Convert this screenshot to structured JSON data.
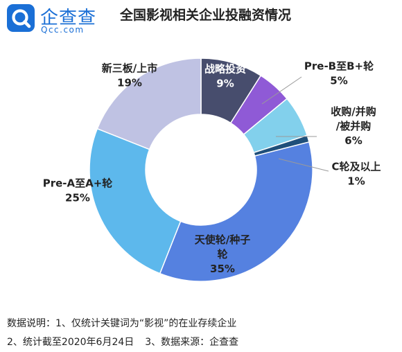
{
  "logo": {
    "name": "企查查",
    "domain": "Qcc.com",
    "accent": "#1a6fd6"
  },
  "title": "全国影视相关企业投融资情况",
  "chart_data": {
    "type": "pie",
    "donut": true,
    "start_angle_deg": 0,
    "slices": [
      {
        "label_lines": [
          "战略投资"
        ],
        "pct_label": "9%",
        "value": 9,
        "color": "#474d6d",
        "text_color": "#ffffff"
      },
      {
        "label_lines": [
          "Pre-B至B+轮"
        ],
        "pct_label": "5%",
        "value": 5,
        "color": "#8f5ad6",
        "text_color": "#222222"
      },
      {
        "label_lines": [
          "收购/并购",
          "/被并购"
        ],
        "pct_label": "6%",
        "value": 6,
        "color": "#82d0ec",
        "text_color": "#222222"
      },
      {
        "label_lines": [
          "C轮及以上"
        ],
        "pct_label": "1%",
        "value": 1,
        "color": "#1f4f7a",
        "text_color": "#222222"
      },
      {
        "label_lines": [
          "天使轮/种子",
          "轮"
        ],
        "pct_label": "35%",
        "value": 35,
        "color": "#5581e0",
        "text_color": "#222222"
      },
      {
        "label_lines": [
          "Pre-A至A+轮"
        ],
        "pct_label": "25%",
        "value": 25,
        "color": "#5db8ec",
        "text_color": "#222222"
      },
      {
        "label_lines": [
          "新三板/上市"
        ],
        "pct_label": "19%",
        "value": 19,
        "color": "#bfc2e3",
        "text_color": "#222222"
      }
    ]
  },
  "notes": {
    "line1": "数据说明：1、仅统计关键词为“影视”的在业存续企业",
    "line2a": "2、统计截至2020年6月24日",
    "line2b": "3、数据来源：企查查"
  }
}
